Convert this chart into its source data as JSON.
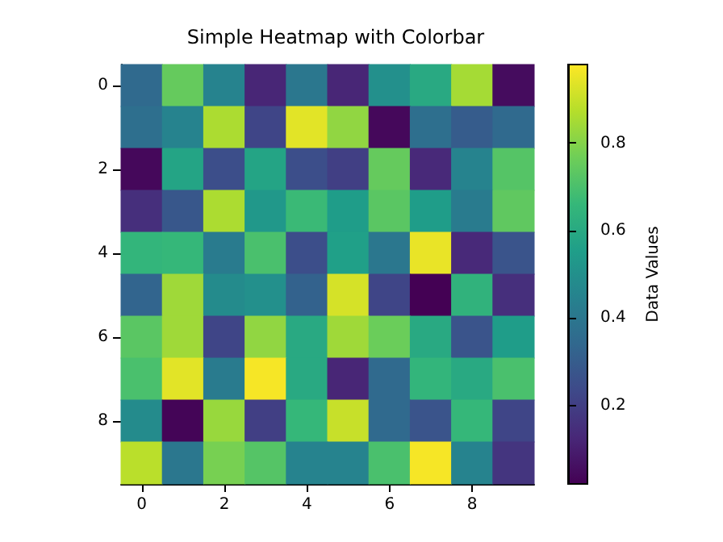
{
  "chart_data": {
    "type": "heatmap",
    "title": "Simple Heatmap with Colorbar",
    "clabel": "Data Values",
    "categories": [
      "0",
      null,
      "2",
      null,
      "4",
      null,
      "6",
      null,
      "8",
      null
    ],
    "y_categories": [
      "0",
      null,
      "2",
      null,
      "4",
      null,
      "6",
      null,
      "8",
      null
    ],
    "cells": [
      [
        0.35,
        0.75,
        0.45,
        0.12,
        0.4,
        0.12,
        0.5,
        0.6,
        0.85,
        0.05
      ],
      [
        0.37,
        0.45,
        0.86,
        0.22,
        0.94,
        0.82,
        0.04,
        0.37,
        0.3,
        0.35
      ],
      [
        0.04,
        0.58,
        0.25,
        0.58,
        0.25,
        0.2,
        0.75,
        0.13,
        0.45,
        0.72
      ],
      [
        0.15,
        0.28,
        0.86,
        0.53,
        0.67,
        0.55,
        0.73,
        0.55,
        0.42,
        0.74
      ],
      [
        0.65,
        0.66,
        0.42,
        0.7,
        0.25,
        0.56,
        0.4,
        0.95,
        0.13,
        0.27
      ],
      [
        0.33,
        0.84,
        0.48,
        0.5,
        0.32,
        0.92,
        0.22,
        0.02,
        0.64,
        0.15
      ],
      [
        0.73,
        0.84,
        0.22,
        0.82,
        0.6,
        0.84,
        0.76,
        0.6,
        0.27,
        0.55
      ],
      [
        0.7,
        0.94,
        0.42,
        0.97,
        0.6,
        0.12,
        0.35,
        0.65,
        0.6,
        0.7
      ],
      [
        0.48,
        0.03,
        0.83,
        0.2,
        0.66,
        0.9,
        0.35,
        0.27,
        0.66,
        0.22
      ],
      [
        0.88,
        0.4,
        0.78,
        0.72,
        0.45,
        0.45,
        0.7,
        0.97,
        0.45,
        0.17
      ]
    ],
    "clim": [
      0.02,
      0.98
    ],
    "cticks": [
      0.2,
      0.4,
      0.6,
      0.8
    ]
  }
}
